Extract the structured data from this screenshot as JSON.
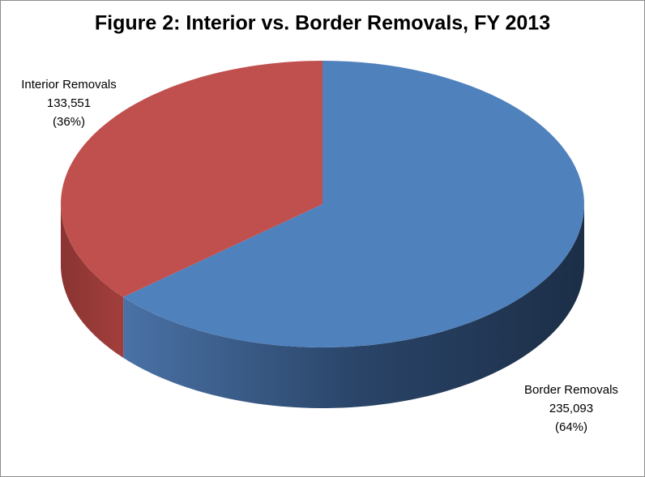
{
  "chart_data": {
    "type": "pie3d",
    "title": "Figure 2: Interior vs. Border Removals, FY 2013",
    "categories": [
      "Border Removals",
      "Interior Removals"
    ],
    "values": [
      235093,
      133551
    ],
    "value_labels": [
      "235,093",
      "133,551"
    ],
    "percentages": [
      64,
      36
    ],
    "percent_labels": [
      "(64%)",
      "(36%)"
    ],
    "colors": [
      "#4f81bd",
      "#c0504d"
    ]
  }
}
